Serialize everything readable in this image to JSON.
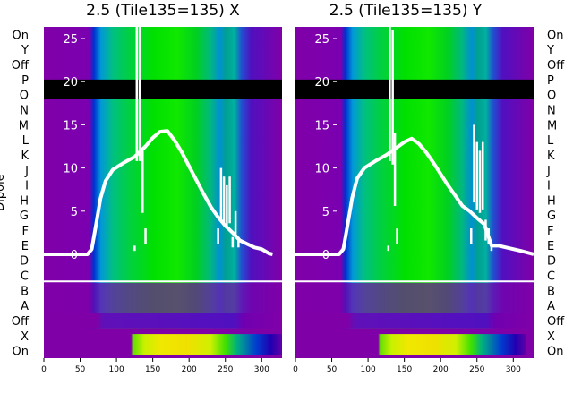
{
  "chart_data": {
    "type": "heatmap",
    "ylabel": "Dipole",
    "row_labels_left": [
      "On",
      "Y",
      "Off",
      "P",
      "O",
      "N",
      "M",
      "L",
      "K",
      "J",
      "I",
      "H",
      "G",
      "F",
      "E",
      "D",
      "C",
      "B",
      "A",
      "Off",
      "X",
      "On"
    ],
    "row_labels_right": [
      "On",
      "Y",
      "Off",
      "P",
      "O",
      "N",
      "M",
      "L",
      "K",
      "J",
      "I",
      "H",
      "G",
      "F",
      "E",
      "D",
      "C",
      "B",
      "A",
      "Off",
      "X",
      "On"
    ],
    "x_ticks": [
      0,
      50,
      100,
      150,
      200,
      250,
      300
    ],
    "xlim": [
      0,
      328
    ],
    "overlay_yticks": [
      0,
      5,
      10,
      15,
      20,
      25
    ],
    "overlay_ylim": [
      -3,
      27
    ],
    "panels": [
      {
        "title": "2.5 (Tile135=135) X",
        "overlay_curve": [
          [
            0,
            0
          ],
          [
            60,
            0
          ],
          [
            66,
            0.6
          ],
          [
            72,
            3.5
          ],
          [
            78,
            6.5
          ],
          [
            85,
            8.5
          ],
          [
            95,
            9.8
          ],
          [
            110,
            10.6
          ],
          [
            125,
            11.3
          ],
          [
            140,
            12.5
          ],
          [
            150,
            13.5
          ],
          [
            160,
            14.2
          ],
          [
            170,
            14.3
          ],
          [
            180,
            13.2
          ],
          [
            190,
            11.8
          ],
          [
            200,
            10.2
          ],
          [
            210,
            8.6
          ],
          [
            220,
            7.0
          ],
          [
            230,
            5.5
          ],
          [
            240,
            4.3
          ],
          [
            250,
            3.3
          ],
          [
            260,
            2.5
          ],
          [
            270,
            1.6
          ],
          [
            280,
            1.2
          ],
          [
            290,
            0.8
          ],
          [
            300,
            0.6
          ],
          [
            310,
            0.1
          ],
          [
            315,
            0
          ]
        ],
        "spikes": [
          [
            125,
            1
          ],
          [
            128,
            27
          ],
          [
            132,
            27
          ],
          [
            136,
            12
          ],
          [
            140,
            3
          ],
          [
            240,
            3
          ],
          [
            244,
            10
          ],
          [
            248,
            9
          ],
          [
            252,
            8
          ],
          [
            256,
            9
          ],
          [
            260,
            2
          ],
          [
            264,
            5
          ],
          [
            268,
            2
          ]
        ]
      },
      {
        "title": "2.5 (Tile135=135) Y",
        "overlay_curve": [
          [
            0,
            0
          ],
          [
            60,
            0
          ],
          [
            66,
            0.6
          ],
          [
            72,
            3.5
          ],
          [
            78,
            6.5
          ],
          [
            85,
            8.8
          ],
          [
            95,
            10.0
          ],
          [
            110,
            10.8
          ],
          [
            125,
            11.5
          ],
          [
            140,
            12.4
          ],
          [
            150,
            13.0
          ],
          [
            160,
            13.4
          ],
          [
            170,
            12.8
          ],
          [
            180,
            11.8
          ],
          [
            190,
            10.6
          ],
          [
            200,
            9.3
          ],
          [
            210,
            8.0
          ],
          [
            220,
            6.8
          ],
          [
            230,
            5.6
          ],
          [
            240,
            5.0
          ],
          [
            250,
            4.2
          ],
          [
            260,
            3.5
          ],
          [
            270,
            1.0
          ],
          [
            280,
            1.0
          ],
          [
            290,
            0.8
          ],
          [
            300,
            0.6
          ],
          [
            310,
            0.4
          ],
          [
            328,
            0
          ]
        ],
        "spikes": [
          [
            128,
            1
          ],
          [
            130,
            27
          ],
          [
            134,
            26
          ],
          [
            137,
            14
          ],
          [
            140,
            3
          ],
          [
            242,
            3
          ],
          [
            246,
            15
          ],
          [
            250,
            13
          ],
          [
            254,
            12
          ],
          [
            258,
            13
          ],
          [
            262,
            4
          ],
          [
            266,
            3
          ],
          [
            270,
            1
          ]
        ]
      }
    ]
  }
}
